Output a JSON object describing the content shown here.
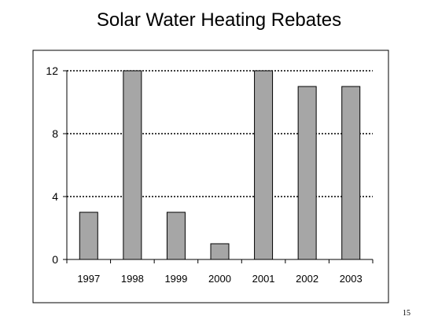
{
  "slide": {
    "page_number": "15"
  },
  "chart_data": {
    "type": "bar",
    "title": "Solar Water Heating Rebates",
    "xlabel": "",
    "ylabel": "",
    "categories": [
      "1997",
      "1998",
      "1999",
      "2000",
      "2001",
      "2002",
      "2003"
    ],
    "values": [
      3,
      12,
      3,
      1,
      12,
      11,
      11
    ],
    "ylim": [
      0,
      12
    ],
    "yticks": [
      "0",
      "4",
      "8",
      "12"
    ],
    "grid": "horizontal dotted",
    "legend": "none",
    "colors": {
      "bar": "#a6a6a6",
      "bar_stroke": "#000000",
      "frame": "#000000"
    }
  }
}
